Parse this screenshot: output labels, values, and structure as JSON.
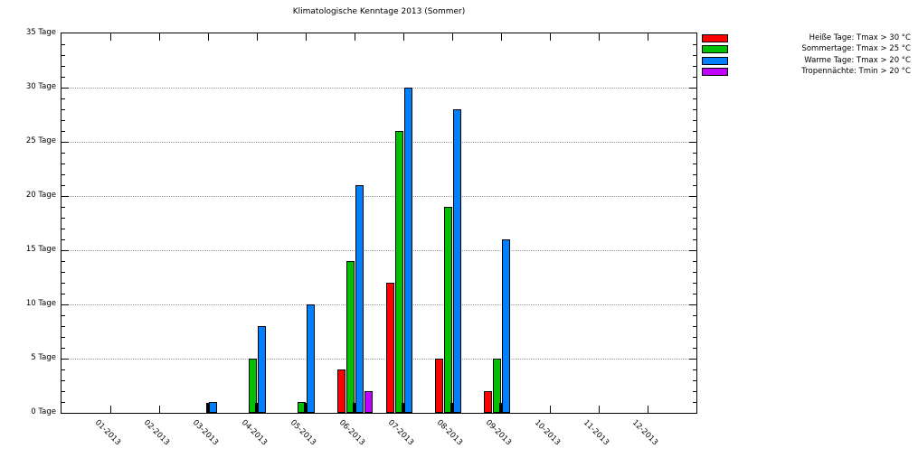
{
  "chart_data": {
    "type": "bar",
    "title": "Klimatologische Kenntage 2013 (Sommer)",
    "categories": [
      "01-2013",
      "02-2013",
      "03-2013",
      "04-2013",
      "05-2013",
      "06-2013",
      "07-2013",
      "08-2013",
      "09-2013",
      "10-2013",
      "11-2013",
      "12-2013"
    ],
    "series": [
      {
        "name": "Heiße Tage: Tmax > 30 °C",
        "color": "#ff0000",
        "values": [
          0,
          0,
          0,
          0,
          0,
          4,
          12,
          5,
          2,
          0,
          0,
          0
        ]
      },
      {
        "name": "Sommertage: Tmax > 25 °C",
        "color": "#00c000",
        "values": [
          0,
          0,
          0,
          5,
          1,
          14,
          26,
          19,
          5,
          0,
          0,
          0
        ]
      },
      {
        "name": "Warme Tage: Tmax > 20 °C",
        "color": "#0080ff",
        "values": [
          0,
          0,
          1,
          8,
          10,
          21,
          30,
          28,
          16,
          0,
          0,
          0
        ]
      },
      {
        "name": "Tropennächte: Tmin > 20 °C",
        "color": "#c000ff",
        "values": [
          0,
          0,
          0,
          0,
          0,
          2,
          0,
          0,
          0,
          0,
          0,
          0
        ]
      }
    ],
    "ylabel_unit": "Tage",
    "ylim": [
      0,
      35
    ],
    "ytick_step": 5,
    "ytick_minor_step": 1,
    "ytick_labels": [
      "0 Tage",
      "5 Tage",
      "10 Tage",
      "15 Tage",
      "20 Tage",
      "25 Tage",
      "30 Tage",
      "35 Tage"
    ],
    "grid": "horizontal dotted lines every 5 Tage",
    "legend_position": "outside top-right"
  },
  "colors": {
    "background": "#ffffff",
    "axis": "#000000",
    "grid": "#999999",
    "bar_shadow": "#000000"
  }
}
